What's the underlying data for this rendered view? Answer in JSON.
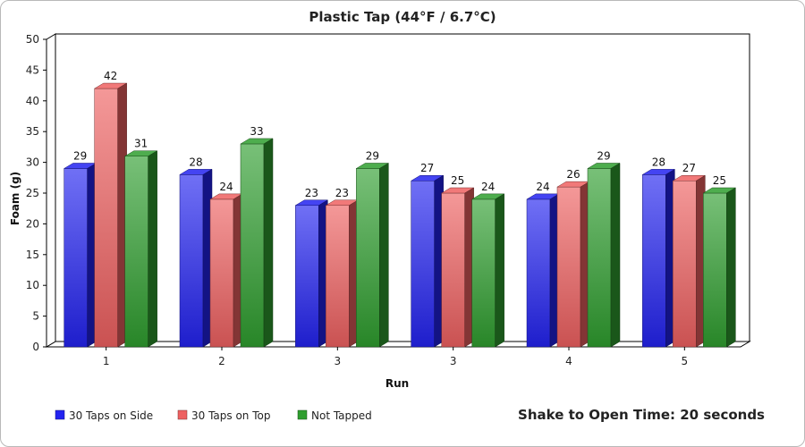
{
  "chart_data": {
    "type": "bar",
    "title": "Plastic Tap (44°F / 6.7°C)",
    "xlabel": "Run",
    "ylabel": "Foam (g)",
    "ylim": [
      0,
      50
    ],
    "ytick_step": 5,
    "categories": [
      "1",
      "2",
      "3",
      "3",
      "4",
      "5"
    ],
    "series": [
      {
        "name": "30 Taps on Side",
        "color": "#2323f0",
        "values": [
          29,
          28,
          23,
          27,
          24,
          28
        ]
      },
      {
        "name": "30 Taps on Top",
        "color": "#ee6161",
        "values": [
          42,
          24,
          23,
          25,
          26,
          27
        ]
      },
      {
        "name": "Not Tapped",
        "color": "#2f9e2f",
        "values": [
          31,
          33,
          29,
          24,
          29,
          25
        ]
      }
    ],
    "legend_position": "bottom-left",
    "annotation": "Shake to Open Time: 20 seconds",
    "grid": false,
    "style": "3d"
  }
}
